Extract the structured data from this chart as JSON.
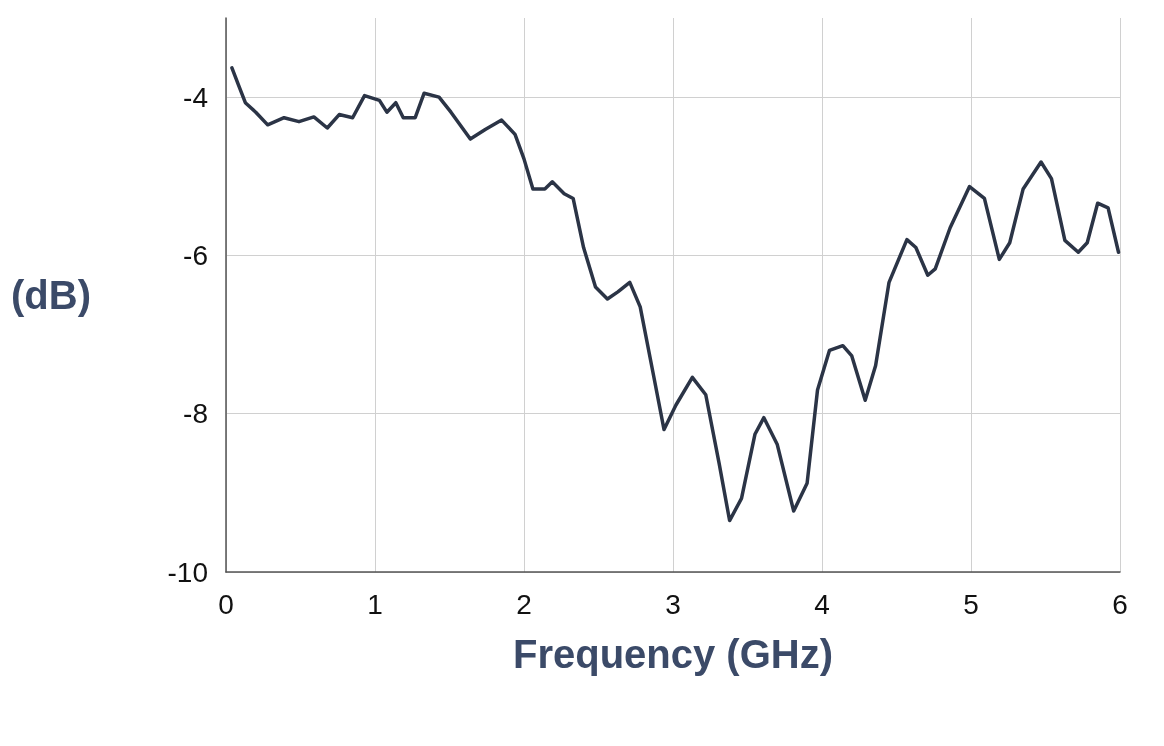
{
  "chart_data": {
    "type": "line",
    "xlabel": "Frequency (GHz)",
    "ylabel": "(dB)",
    "xlim": [
      0,
      6
    ],
    "xticks": [
      0,
      1,
      2,
      3,
      4,
      5,
      6
    ],
    "ylim": [
      -10,
      -3
    ],
    "yticks": [
      -10,
      -8,
      -6,
      -4
    ],
    "grid": true,
    "marker": "none",
    "line_style": "solid",
    "series": [
      {
        "color": "#2b3446",
        "x": [
          0.04,
          0.085,
          0.13,
          0.2,
          0.28,
          0.39,
          0.49,
          0.59,
          0.68,
          0.76,
          0.85,
          0.93,
          1.03,
          1.08,
          1.14,
          1.19,
          1.27,
          1.33,
          1.43,
          1.51,
          1.64,
          1.74,
          1.85,
          1.94,
          2.0,
          2.06,
          2.14,
          2.19,
          2.27,
          2.33,
          2.4,
          2.48,
          2.56,
          2.63,
          2.71,
          2.78,
          2.87,
          2.94,
          3.02,
          3.13,
          3.22,
          3.31,
          3.38,
          3.46,
          3.55,
          3.61,
          3.7,
          3.81,
          3.9,
          3.97,
          4.05,
          4.14,
          4.2,
          4.29,
          4.36,
          4.45,
          4.57,
          4.63,
          4.71,
          4.76,
          4.86,
          4.99,
          5.09,
          5.19,
          5.26,
          5.35,
          5.47,
          5.54,
          5.63,
          5.72,
          5.78,
          5.85,
          5.92,
          5.99
        ],
        "values": [
          -3.63,
          -3.85,
          -4.07,
          -4.19,
          -4.35,
          -4.26,
          -4.31,
          -4.25,
          -4.39,
          -4.22,
          -4.26,
          -3.98,
          -4.04,
          -4.19,
          -4.07,
          -4.26,
          -4.26,
          -3.95,
          -4.0,
          -4.19,
          -4.53,
          -4.41,
          -4.29,
          -4.47,
          -4.78,
          -5.16,
          -5.16,
          -5.07,
          -5.22,
          -5.28,
          -5.9,
          -6.4,
          -6.55,
          -6.46,
          -6.34,
          -6.65,
          -7.52,
          -8.2,
          -7.89,
          -7.54,
          -7.76,
          -8.63,
          -9.35,
          -9.07,
          -8.26,
          -8.05,
          -8.39,
          -9.23,
          -8.88,
          -7.7,
          -7.2,
          -7.14,
          -7.27,
          -7.83,
          -7.39,
          -6.34,
          -5.8,
          -5.9,
          -6.25,
          -6.17,
          -5.65,
          -5.13,
          -5.28,
          -6.05,
          -5.84,
          -5.16,
          -4.82,
          -5.03,
          -5.81,
          -5.96,
          -5.84,
          -5.34,
          -5.4,
          -5.96
        ]
      }
    ]
  }
}
